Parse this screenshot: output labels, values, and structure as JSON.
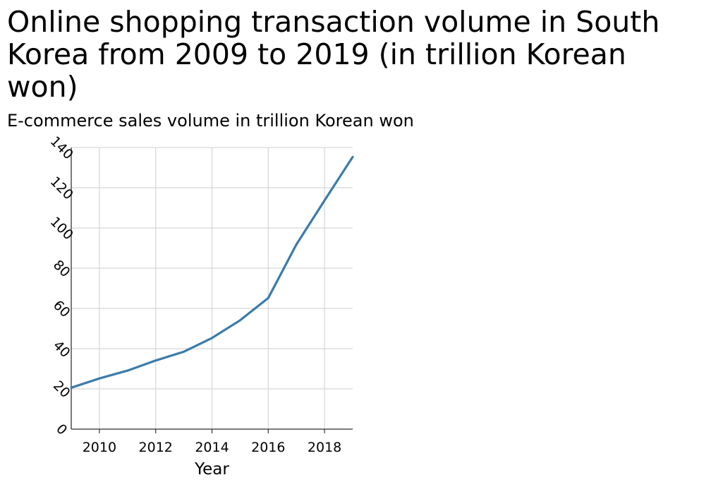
{
  "chart_data": {
    "type": "line",
    "title": "Online shopping transaction volume in South Korea from 2009 to 2019 (in trillion Korean won)",
    "ylabel": "E-commerce sales volume in trillion Korean won",
    "xlabel": "Year",
    "xlim": [
      2009,
      2019
    ],
    "ylim": [
      0,
      140
    ],
    "x_ticks": [
      2010,
      2012,
      2014,
      2016,
      2018
    ],
    "y_ticks": [
      0,
      20,
      40,
      60,
      80,
      100,
      120,
      140
    ],
    "grid": true,
    "series": [
      {
        "color": "#3a7bab",
        "x": [
          2009,
          2010,
          2011,
          2012,
          2013,
          2014,
          2015,
          2016,
          2017,
          2018,
          2019
        ],
        "values": [
          20.6,
          25.2,
          29.1,
          34.1,
          38.5,
          45.3,
          54.1,
          65.2,
          91.8,
          113.7,
          135.3
        ]
      }
    ]
  }
}
